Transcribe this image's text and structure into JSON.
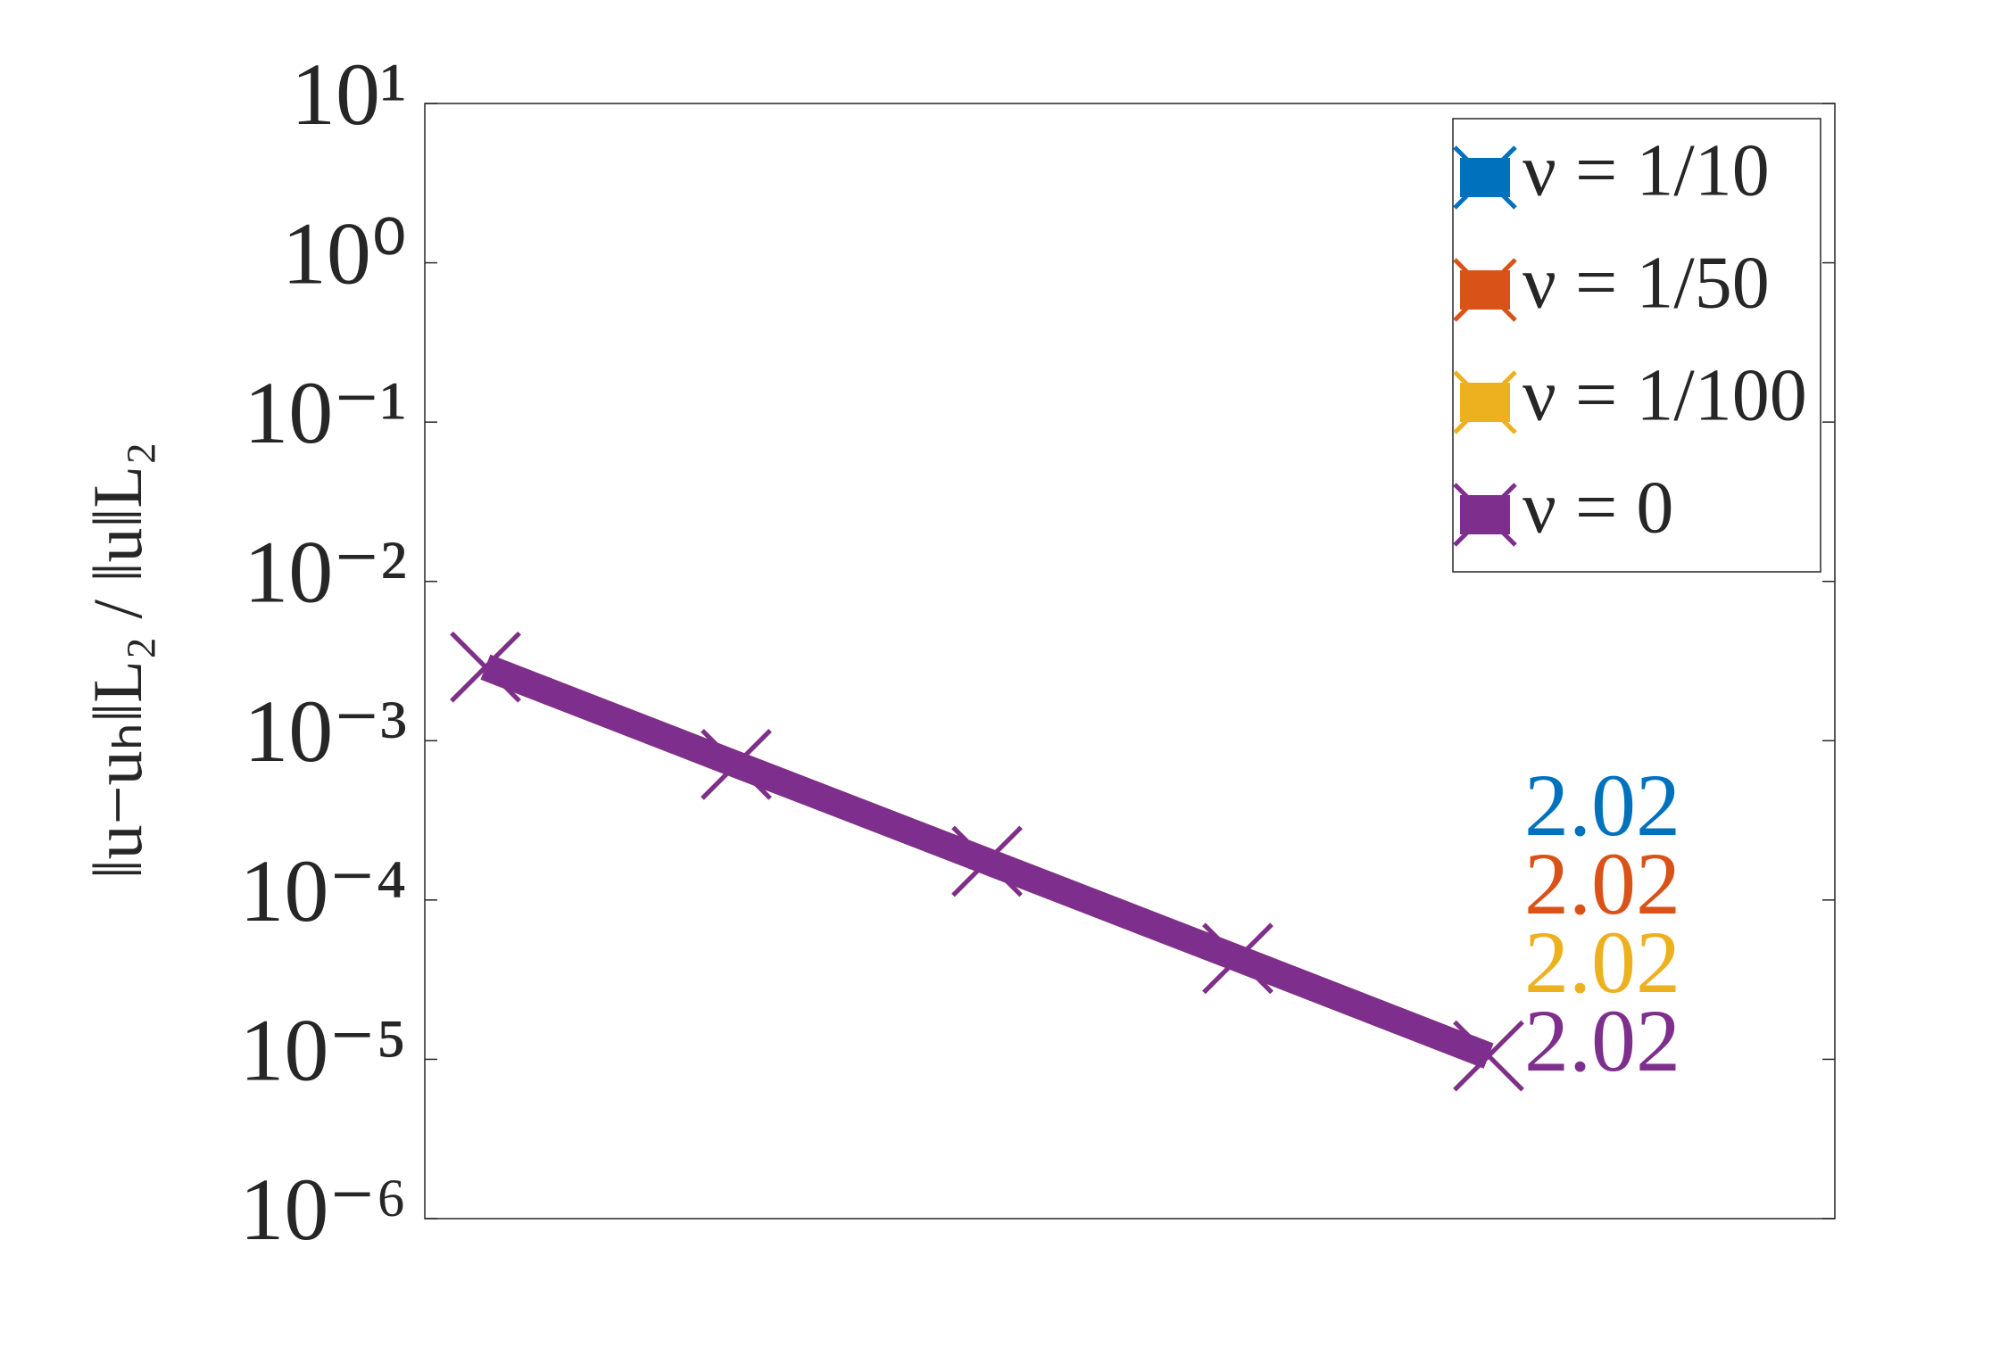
{
  "chart_data": {
    "type": "line",
    "y_label": "‖u−uₕ‖L₂ / ‖u‖L₂",
    "categories": [
      null,
      null,
      null,
      null,
      null
    ],
    "series": [
      {
        "name": "ν = 1/10",
        "color": "#0072BD",
        "values": [
          0.0029,
          0.00071,
          0.000175,
          4.3e-05,
          1.05e-05
        ]
      },
      {
        "name": "ν = 1/50",
        "color": "#D95319",
        "values": [
          0.0029,
          0.00071,
          0.000175,
          4.3e-05,
          1.05e-05
        ]
      },
      {
        "name": "ν = 1/100",
        "color": "#EDB120",
        "values": [
          0.0029,
          0.00071,
          0.000175,
          4.3e-05,
          1.05e-05
        ]
      },
      {
        "name": "ν = 0",
        "color": "#7E2F8E",
        "values": [
          0.0029,
          0.00071,
          0.000175,
          4.3e-05,
          1.05e-05
        ]
      }
    ],
    "annotations": [
      {
        "text": "2.02",
        "color": "#0072BD"
      },
      {
        "text": "2.02",
        "color": "#D95319"
      },
      {
        "text": "2.02",
        "color": "#EDB120"
      },
      {
        "text": "2.02",
        "color": "#7E2F8E"
      }
    ],
    "ylog": true,
    "ylim": [
      1e-06,
      10
    ],
    "yticks": [
      {
        "value": 1e-06,
        "label": "10⁻⁶"
      },
      {
        "value": 1e-05,
        "label": "10⁻⁵"
      },
      {
        "value": 0.0001,
        "label": "10⁻⁴"
      },
      {
        "value": 0.001,
        "label": "10⁻³"
      },
      {
        "value": 0.01,
        "label": "10⁻²"
      },
      {
        "value": 0.1,
        "label": "10⁻¹"
      },
      {
        "value": 1,
        "label": "10⁰"
      },
      {
        "value": 10,
        "label": "10¹"
      }
    ],
    "legend": "northeast"
  }
}
